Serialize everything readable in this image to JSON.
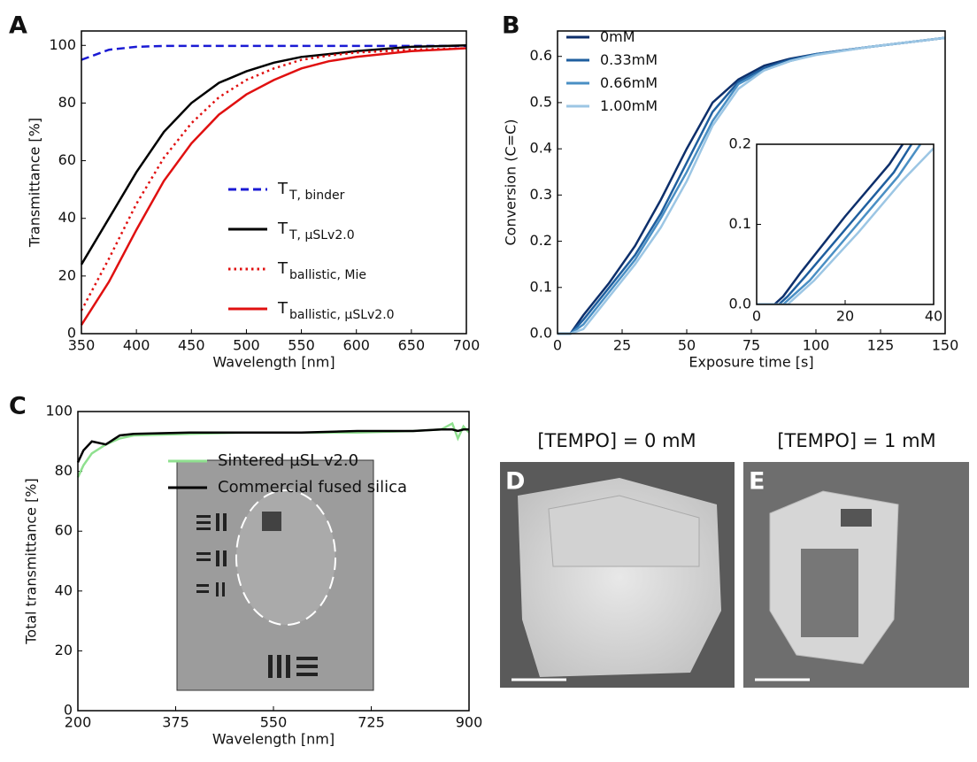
{
  "chart_data": [
    {
      "type": "line",
      "panel_label": "A",
      "xlabel": "Wavelength [nm]",
      "ylabel": "Transmittance [%]",
      "xlim": [
        350,
        700
      ],
      "ylim": [
        0,
        105
      ],
      "xticks": [
        350,
        400,
        450,
        500,
        550,
        600,
        650,
        700
      ],
      "yticks": [
        0,
        20,
        40,
        60,
        80,
        100
      ],
      "x": [
        350,
        375,
        400,
        425,
        450,
        475,
        500,
        525,
        550,
        575,
        600,
        650,
        700
      ],
      "series": [
        {
          "name": "T",
          "subscript": "T, binder",
          "color": "#1a1ad4",
          "dash": "dashed",
          "values": [
            95,
            98.5,
            99.5,
            99.8,
            99.8,
            99.8,
            99.8,
            99.8,
            99.8,
            99.8,
            99.8,
            99.8,
            99.8
          ]
        },
        {
          "name": "T",
          "subscript": "T, µSLv2.0",
          "color": "#000000",
          "dash": "solid",
          "values": [
            24,
            40,
            56,
            70,
            80,
            87,
            91,
            94,
            96,
            97,
            98,
            99.5,
            100
          ]
        },
        {
          "name": "T",
          "subscript": "ballistic, Mie",
          "color": "#e01010",
          "dash": "dotted",
          "values": [
            8,
            26,
            45,
            61,
            73,
            82,
            88,
            92,
            95,
            96.5,
            97.5,
            98.5,
            99
          ]
        },
        {
          "name": "T",
          "subscript": "ballistic, µSLv2.0",
          "color": "#e01010",
          "dash": "solid",
          "values": [
            3,
            18,
            36,
            53,
            66,
            76,
            83,
            88,
            92,
            94.5,
            96,
            98,
            99
          ]
        }
      ]
    },
    {
      "type": "line",
      "panel_label": "B",
      "xlabel": "Exposure time [s]",
      "ylabel": "Conversion (C=C)",
      "xlim": [
        0,
        150
      ],
      "ylim": [
        0,
        0.655
      ],
      "xticks": [
        0,
        25,
        50,
        75,
        100,
        125,
        150
      ],
      "yticks": [
        {
          "value": 0,
          "label": "0.0"
        },
        0.1,
        0.2,
        0.3,
        0.4,
        0.5,
        0.6
      ],
      "x": [
        0,
        5,
        10,
        20,
        30,
        40,
        50,
        60,
        70,
        80,
        90,
        100,
        120,
        150
      ],
      "series": [
        {
          "name": "0mM",
          "color": "#0d2f6b",
          "values": [
            0,
            0,
            0.04,
            0.11,
            0.19,
            0.29,
            0.4,
            0.5,
            0.55,
            0.58,
            0.595,
            0.605,
            0.62,
            0.64
          ]
        },
        {
          "name": "0.33mM",
          "color": "#1f5f9f",
          "values": [
            0,
            0,
            0.03,
            0.1,
            0.17,
            0.26,
            0.37,
            0.48,
            0.545,
            0.575,
            0.593,
            0.605,
            0.62,
            0.64
          ]
        },
        {
          "name": "0.66mM",
          "color": "#4a8fc4",
          "values": [
            0,
            0,
            0.02,
            0.09,
            0.16,
            0.25,
            0.35,
            0.46,
            0.54,
            0.57,
            0.59,
            0.604,
            0.62,
            0.64
          ]
        },
        {
          "name": "1.00mM",
          "color": "#9cc6e4",
          "values": [
            0,
            0,
            0.01,
            0.08,
            0.15,
            0.23,
            0.33,
            0.45,
            0.53,
            0.57,
            0.59,
            0.603,
            0.62,
            0.64
          ]
        }
      ],
      "inset": {
        "type": "line",
        "xlim": [
          0,
          40
        ],
        "ylim": [
          0,
          0.2
        ],
        "xticks": [
          0,
          20,
          40
        ],
        "yticks": [
          {
            "value": 0,
            "label": "0.0"
          },
          0.1,
          0.2
        ],
        "series": [
          {
            "color": "#0d2f6b",
            "x": [
              0,
              4,
              6,
              10,
              20,
              30,
              33
            ],
            "values": [
              0,
              0,
              0.01,
              0.04,
              0.11,
              0.175,
              0.2
            ]
          },
          {
            "color": "#1f5f9f",
            "x": [
              0,
              5,
              7,
              11,
              21,
              31,
              35
            ],
            "values": [
              0,
              0,
              0.01,
              0.035,
              0.1,
              0.165,
              0.2
            ]
          },
          {
            "color": "#4a8fc4",
            "x": [
              0,
              6,
              8,
              12,
              22,
              32,
              37
            ],
            "values": [
              0,
              0,
              0.01,
              0.03,
              0.095,
              0.16,
              0.2
            ]
          },
          {
            "color": "#9cc6e4",
            "x": [
              0,
              7,
              9,
              13,
              23,
              33,
              40
            ],
            "values": [
              0,
              0,
              0.01,
              0.03,
              0.09,
              0.155,
              0.195
            ]
          }
        ]
      }
    },
    {
      "type": "line",
      "panel_label": "C",
      "xlabel": "Wavelength [nm]",
      "ylabel": "Total transmittance [%]",
      "xlim": [
        200,
        900
      ],
      "ylim": [
        0,
        100
      ],
      "xticks": [
        200,
        375,
        550,
        725,
        900
      ],
      "yticks": [
        0,
        20,
        40,
        60,
        80,
        100
      ],
      "x": [
        200,
        210,
        225,
        250,
        275,
        300,
        400,
        500,
        600,
        700,
        800,
        850,
        870,
        880,
        890,
        900
      ],
      "series": [
        {
          "name": "Sintered µSL v2.0",
          "color": "#8fe08f",
          "values": [
            78,
            82,
            86,
            89,
            91,
            92,
            92.5,
            93,
            93,
            93,
            93.5,
            94,
            96,
            91,
            95,
            93
          ]
        },
        {
          "name": "Commercial fused silica",
          "color": "#000000",
          "values": [
            83,
            87,
            90,
            89,
            92,
            92.5,
            93,
            93,
            93,
            93.5,
            93.5,
            94,
            94,
            93.5,
            94,
            94
          ]
        }
      ]
    }
  ],
  "images": [
    {
      "label": "D",
      "title": "[TEMPO] = 0 mM"
    },
    {
      "label": "E",
      "title": "[TEMPO] = 1 mM"
    }
  ]
}
